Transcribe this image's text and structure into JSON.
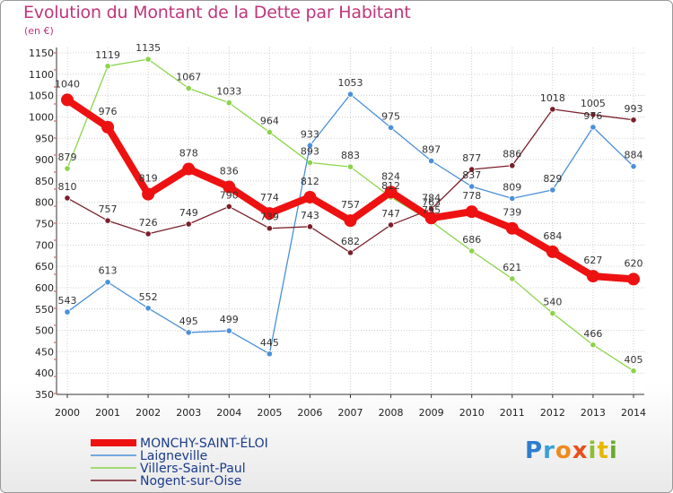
{
  "title": "Evolution du Montant de la Dette par Habitant",
  "unit": "(en €)",
  "logo": {
    "text": "Proxiti"
  },
  "chart_data": {
    "type": "line",
    "title": "Evolution du Montant de la Dette par Habitant",
    "ylabel": "(en €)",
    "ylim": [
      350,
      1150
    ],
    "yticks": [
      350,
      400,
      450,
      500,
      550,
      600,
      650,
      700,
      750,
      800,
      850,
      900,
      950,
      1000,
      1050,
      1100,
      1150
    ],
    "x": [
      "2000",
      "2001",
      "2002",
      "2003",
      "2004",
      "2005",
      "2006",
      "2007",
      "2008",
      "2009",
      "2010",
      "2011",
      "2012",
      "2013",
      "2014"
    ],
    "grid": true,
    "legend": "bottom-left",
    "series": [
      {
        "name": "Villers-Saint-Paul",
        "color": "#8cd44a",
        "values": [
          879,
          1119,
          1135,
          1067,
          1033,
          964,
          893,
          883,
          812,
          755,
          686,
          621,
          540,
          466,
          405
        ]
      },
      {
        "name": "Laigneville",
        "color": "#4a90d9",
        "values": [
          543,
          613,
          552,
          495,
          499,
          445,
          933,
          1053,
          975,
          897,
          837,
          809,
          829,
          976,
          884
        ]
      },
      {
        "name": "Nogent-sur-Oise",
        "color": "#7a1f2a",
        "values": [
          810,
          757,
          726,
          749,
          790,
          739,
          743,
          682,
          747,
          784,
          877,
          886,
          1018,
          1005,
          993
        ]
      },
      {
        "name": "MONCHY-SAINT-ÉLOI",
        "color": "#ee1111",
        "values": [
          1040,
          976,
          819,
          878,
          836,
          774,
          812,
          757,
          824,
          763,
          778,
          739,
          684,
          627,
          620
        ]
      }
    ]
  }
}
